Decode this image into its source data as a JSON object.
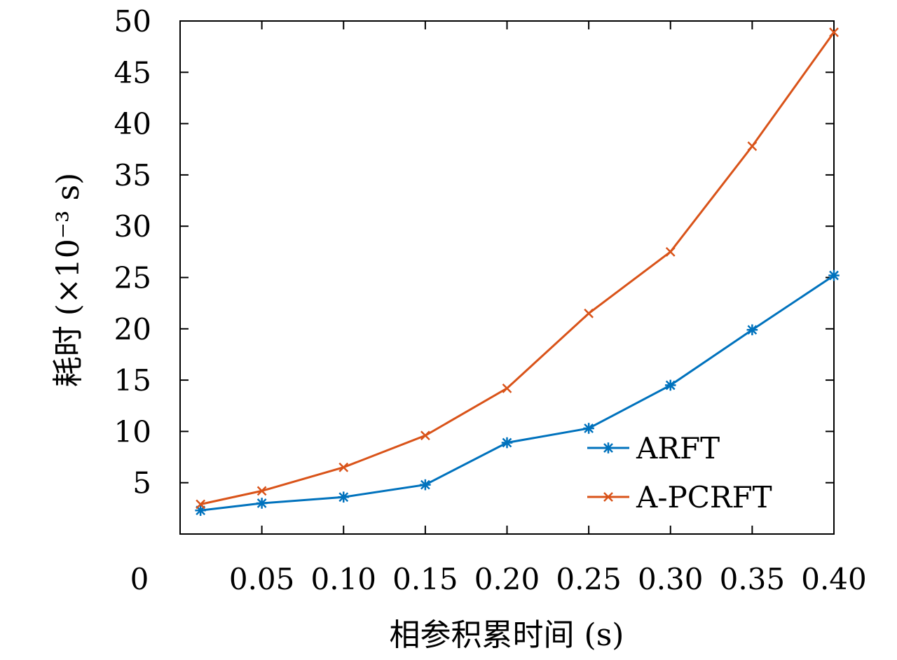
{
  "chart_data": {
    "type": "line",
    "title": "",
    "xlabel": "相参积累时间 (s)",
    "ylabel": "耗时 (×10⁻³ s)",
    "xlim": [
      0,
      0.4
    ],
    "ylim": [
      0,
      50
    ],
    "x_tick_labels": [
      "0",
      "0.05",
      "0.10",
      "0.15",
      "0.20",
      "0.25",
      "0.30",
      "0.35",
      "0.40"
    ],
    "y_tick_labels": [
      "5",
      "10",
      "15",
      "20",
      "25",
      "30",
      "35",
      "40",
      "45",
      "50"
    ],
    "grid": false,
    "legend_position": "bottom-right",
    "x": [
      0.0125,
      0.05,
      0.1,
      0.15,
      0.2,
      0.25,
      0.3,
      0.35,
      0.4
    ],
    "series": [
      {
        "name": "ARFT",
        "color": "#0072BD",
        "marker": "asterisk",
        "values": [
          2.3,
          3.0,
          3.6,
          4.8,
          8.9,
          10.3,
          14.5,
          19.9,
          25.2
        ]
      },
      {
        "name": "A-PCRFT",
        "color": "#D95319",
        "marker": "x",
        "values": [
          2.9,
          4.2,
          6.5,
          9.6,
          14.2,
          21.5,
          27.5,
          37.8,
          48.9
        ]
      }
    ]
  }
}
